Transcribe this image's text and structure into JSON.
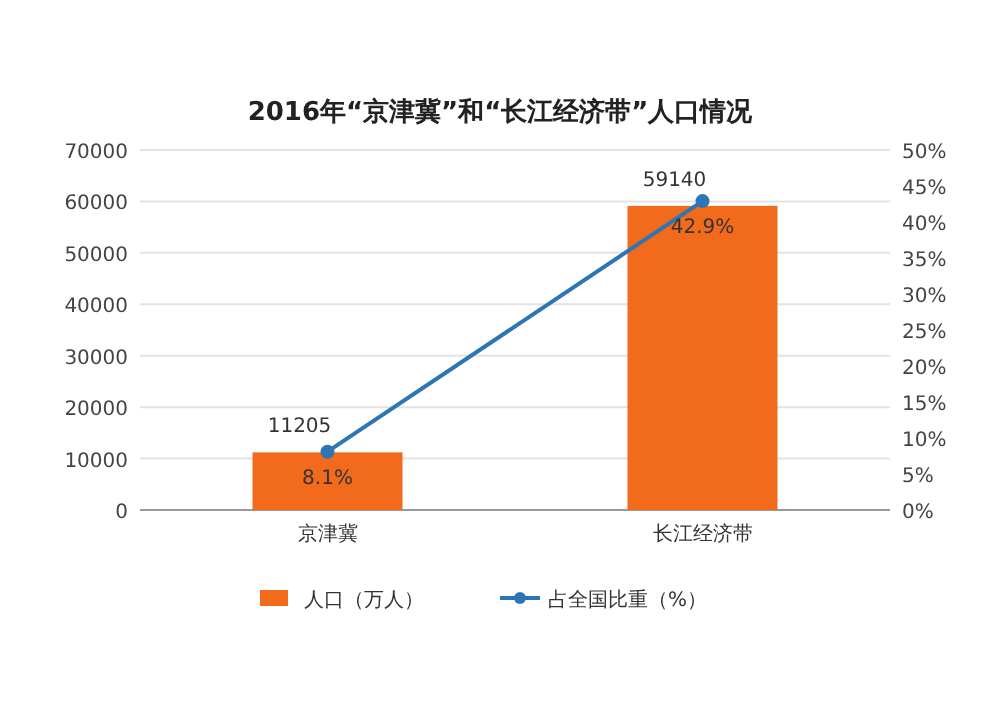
{
  "chart_data": {
    "type": "bar",
    "title": "2016年“京津冀”和“长江经济带”人口情况",
    "categories": [
      "京津冀",
      "长江经济带"
    ],
    "series": [
      {
        "name": "人口（万人）",
        "color": "#f26a1b",
        "values": [
          11205,
          59140
        ],
        "value_labels": [
          "11205",
          "59140"
        ]
      },
      {
        "name": "占全国比重（%）",
        "type": "line",
        "axis": "y2",
        "color": "#2e75b6",
        "marker": "circle",
        "values": [
          8.1,
          42.9
        ],
        "value_labels": [
          "8.1%",
          "42.9%"
        ]
      }
    ],
    "ylim": [
      0,
      70000
    ],
    "yticks": [
      0,
      10000,
      20000,
      30000,
      40000,
      50000,
      60000,
      70000
    ],
    "y2lim": [
      0,
      50
    ],
    "y2ticks": [
      {
        "value": 0,
        "label": "0%"
      },
      {
        "value": 5,
        "label": "5%"
      },
      {
        "value": 10,
        "label": "10%"
      },
      {
        "value": 15,
        "label": "15%"
      },
      {
        "value": 20,
        "label": "20%"
      },
      {
        "value": 25,
        "label": "25%"
      },
      {
        "value": 30,
        "label": "30%"
      },
      {
        "value": 35,
        "label": "35%"
      },
      {
        "value": 40,
        "label": "40%"
      },
      {
        "value": 45,
        "label": "45%"
      },
      {
        "value": 50,
        "label": "50%"
      }
    ],
    "grid": "y",
    "legend": "bottom"
  }
}
